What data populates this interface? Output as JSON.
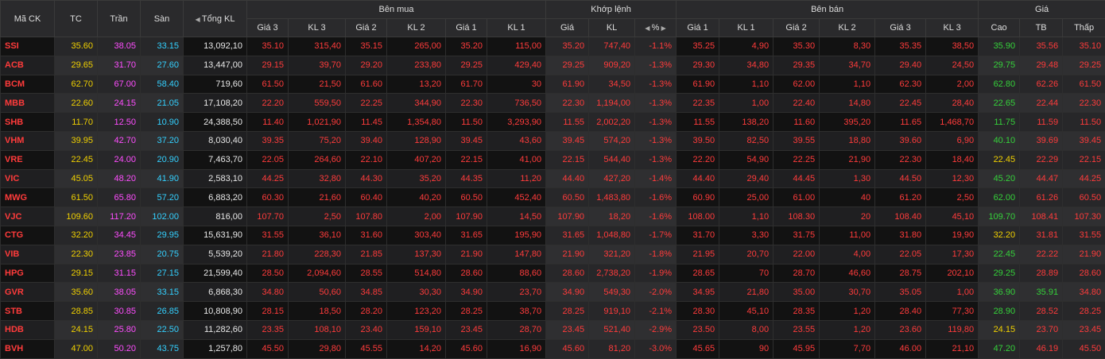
{
  "header": {
    "groups": [
      "Bên mua",
      "Khớp lệnh",
      "Bên bán",
      "Giá"
    ],
    "columns": [
      "Mã CK",
      "TC",
      "Trần",
      "Sàn",
      "Tổng KL",
      "Giá 3",
      "KL 3",
      "Giá 2",
      "KL 2",
      "Giá 1",
      "KL 1",
      "Giá",
      "KL",
      "%",
      "Giá 1",
      "KL 1",
      "Giá 2",
      "KL 2",
      "Giá 3",
      "KL 3",
      "Cao",
      "TB",
      "Thấp"
    ]
  },
  "table": {
    "rows": [
      [
        "SSI",
        "35.60",
        "38.05",
        "33.15",
        "13,092,10",
        "35.10",
        "315,40",
        "35.15",
        "265,00",
        "35.20",
        "115,00",
        "35.20",
        "747,40",
        "-1.1%",
        "35.25",
        "4,90",
        "35.30",
        "8,30",
        "35.35",
        "38,50",
        "35.90",
        "35.56",
        "35.10"
      ],
      [
        "ACB",
        "29.65",
        "31.70",
        "27.60",
        "13,447,00",
        "29.15",
        "39,70",
        "29.20",
        "233,80",
        "29.25",
        "429,40",
        "29.25",
        "909,20",
        "-1.3%",
        "29.30",
        "34,80",
        "29.35",
        "34,70",
        "29.40",
        "24,50",
        "29.75",
        "29.48",
        "29.25"
      ],
      [
        "BCM",
        "62.70",
        "67.00",
        "58.40",
        "719,60",
        "61.50",
        "21,50",
        "61.60",
        "13,20",
        "61.70",
        "30",
        "61.90",
        "34,50",
        "-1.3%",
        "61.90",
        "1,10",
        "62.00",
        "1,10",
        "62.30",
        "2,00",
        "62.80",
        "62.26",
        "61.50"
      ],
      [
        "MBB",
        "22.60",
        "24.15",
        "21.05",
        "17,108,20",
        "22.20",
        "559,50",
        "22.25",
        "344,90",
        "22.30",
        "736,50",
        "22.30",
        "1,194,00",
        "-1.3%",
        "22.35",
        "1,00",
        "22.40",
        "14,80",
        "22.45",
        "28,40",
        "22.65",
        "22.44",
        "22.30"
      ],
      [
        "SHB",
        "11.70",
        "12.50",
        "10.90",
        "24,388,50",
        "11.40",
        "1,021,90",
        "11.45",
        "1,354,80",
        "11.50",
        "3,293,90",
        "11.55",
        "2,002,20",
        "-1.3%",
        "11.55",
        "138,20",
        "11.60",
        "395,20",
        "11.65",
        "1,468,70",
        "11.75",
        "11.59",
        "11.50"
      ],
      [
        "VHM",
        "39.95",
        "42.70",
        "37.20",
        "8,030,40",
        "39.35",
        "75,20",
        "39.40",
        "128,90",
        "39.45",
        "43,60",
        "39.45",
        "574,20",
        "-1.3%",
        "39.50",
        "82,50",
        "39.55",
        "18,80",
        "39.60",
        "6,90",
        "40.10",
        "39.69",
        "39.45"
      ],
      [
        "VRE",
        "22.45",
        "24.00",
        "20.90",
        "7,463,70",
        "22.05",
        "264,60",
        "22.10",
        "407,20",
        "22.15",
        "41,00",
        "22.15",
        "544,40",
        "-1.3%",
        "22.20",
        "54,90",
        "22.25",
        "21,90",
        "22.30",
        "18,40",
        "22.45",
        "22.29",
        "22.15"
      ],
      [
        "VIC",
        "45.05",
        "48.20",
        "41.90",
        "2,583,10",
        "44.25",
        "32,80",
        "44.30",
        "35,20",
        "44.35",
        "11,20",
        "44.40",
        "427,20",
        "-1.4%",
        "44.40",
        "29,40",
        "44.45",
        "1,30",
        "44.50",
        "12,30",
        "45.20",
        "44.47",
        "44.25"
      ],
      [
        "MWG",
        "61.50",
        "65.80",
        "57.20",
        "6,883,20",
        "60.30",
        "21,60",
        "60.40",
        "40,20",
        "60.50",
        "452,40",
        "60.50",
        "1,483,80",
        "-1.6%",
        "60.90",
        "25,00",
        "61.00",
        "40",
        "61.20",
        "2,50",
        "62.00",
        "61.26",
        "60.50"
      ],
      [
        "VJC",
        "109.60",
        "117.20",
        "102.00",
        "816,00",
        "107.70",
        "2,50",
        "107.80",
        "2,00",
        "107.90",
        "14,50",
        "107.90",
        "18,20",
        "-1.6%",
        "108.00",
        "1,10",
        "108.30",
        "20",
        "108.40",
        "45,10",
        "109.70",
        "108.41",
        "107.30"
      ],
      [
        "CTG",
        "32.20",
        "34.45",
        "29.95",
        "15,631,90",
        "31.55",
        "36,10",
        "31.60",
        "303,40",
        "31.65",
        "195,90",
        "31.65",
        "1,048,80",
        "-1.7%",
        "31.70",
        "3,30",
        "31.75",
        "11,00",
        "31.80",
        "19,90",
        "32.20",
        "31.81",
        "31.55"
      ],
      [
        "VIB",
        "22.30",
        "23.85",
        "20.75",
        "5,539,20",
        "21.80",
        "228,30",
        "21.85",
        "137,30",
        "21.90",
        "147,80",
        "21.90",
        "321,20",
        "-1.8%",
        "21.95",
        "20,70",
        "22.00",
        "4,00",
        "22.05",
        "17,30",
        "22.45",
        "22.22",
        "21.90"
      ],
      [
        "HPG",
        "29.15",
        "31.15",
        "27.15",
        "21,599,40",
        "28.50",
        "2,094,60",
        "28.55",
        "514,80",
        "28.60",
        "88,60",
        "28.60",
        "2,738,20",
        "-1.9%",
        "28.65",
        "70",
        "28.70",
        "46,60",
        "28.75",
        "202,10",
        "29.25",
        "28.89",
        "28.60"
      ],
      [
        "GVR",
        "35.60",
        "38.05",
        "33.15",
        "6,868,30",
        "34.80",
        "50,60",
        "34.85",
        "30,30",
        "34.90",
        "23,70",
        "34.90",
        "549,30",
        "-2.0%",
        "34.95",
        "21,80",
        "35.00",
        "30,70",
        "35.05",
        "1,00",
        "36.90",
        "35.91",
        "34.80"
      ],
      [
        "STB",
        "28.85",
        "30.85",
        "26.85",
        "10,808,90",
        "28.15",
        "18,50",
        "28.20",
        "123,20",
        "28.25",
        "38,70",
        "28.25",
        "919,10",
        "-2.1%",
        "28.30",
        "45,10",
        "28.35",
        "1,20",
        "28.40",
        "77,30",
        "28.90",
        "28.52",
        "28.25"
      ],
      [
        "HDB",
        "24.15",
        "25.80",
        "22.50",
        "11,282,60",
        "23.35",
        "108,10",
        "23.40",
        "159,10",
        "23.45",
        "28,70",
        "23.45",
        "521,40",
        "-2.9%",
        "23.50",
        "8,00",
        "23.55",
        "1,20",
        "23.60",
        "119,80",
        "24.15",
        "23.70",
        "23.45"
      ],
      [
        "BVH",
        "47.00",
        "50.20",
        "43.75",
        "1,257,80",
        "45.50",
        "29,80",
        "45.55",
        "14,20",
        "45.60",
        "16,90",
        "45.60",
        "81,20",
        "-3.0%",
        "45.65",
        "90",
        "45.95",
        "7,70",
        "46.00",
        "21,10",
        "47.20",
        "46.19",
        "45.50"
      ]
    ]
  }
}
